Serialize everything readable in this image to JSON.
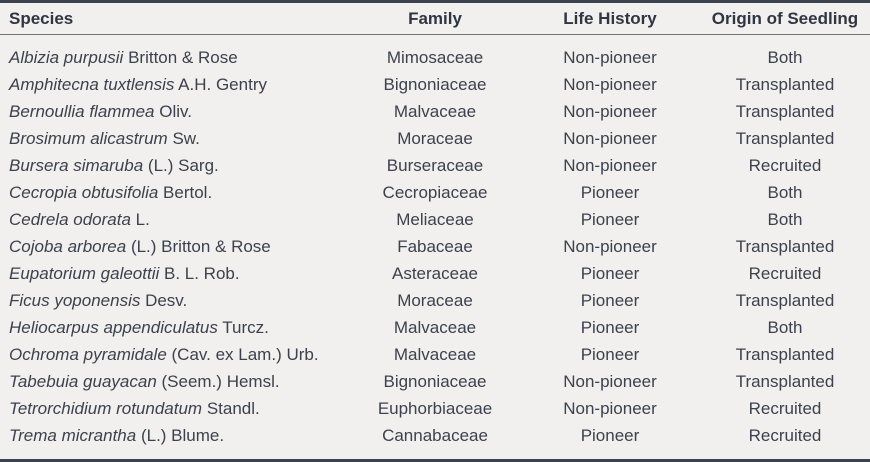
{
  "table": {
    "columns": [
      "Species",
      "Family",
      "Life History",
      "Origin of Seedling"
    ],
    "rows": [
      {
        "species": "Albizia purpusii",
        "authority": "Britton & Rose",
        "family": "Mimosaceae",
        "life_history": "Non-pioneer",
        "origin": "Both"
      },
      {
        "species": "Amphitecna tuxtlensis",
        "authority": "A.H. Gentry",
        "family": "Bignoniaceae",
        "life_history": "Non-pioneer",
        "origin": "Transplanted"
      },
      {
        "species": "Bernoullia flammea",
        "authority": "Oliv.",
        "family": "Malvaceae",
        "life_history": "Non-pioneer",
        "origin": "Transplanted"
      },
      {
        "species": "Brosimum alicastrum",
        "authority": "Sw.",
        "family": "Moraceae",
        "life_history": "Non-pioneer",
        "origin": "Transplanted"
      },
      {
        "species": "Bursera simaruba",
        "authority": "(L.) Sarg.",
        "family": "Burseraceae",
        "life_history": "Non-pioneer",
        "origin": "Recruited"
      },
      {
        "species": "Cecropia obtusifolia",
        "authority": "Bertol.",
        "family": "Cecropiaceae",
        "life_history": "Pioneer",
        "origin": "Both"
      },
      {
        "species": "Cedrela odorata",
        "authority": "L.",
        "family": "Meliaceae",
        "life_history": "Pioneer",
        "origin": "Both"
      },
      {
        "species": "Cojoba arborea",
        "authority": "(L.) Britton & Rose",
        "family": "Fabaceae",
        "life_history": "Non-pioneer",
        "origin": "Transplanted"
      },
      {
        "species": "Eupatorium galeottii",
        "authority": "B. L. Rob.",
        "family": "Asteraceae",
        "life_history": "Pioneer",
        "origin": "Recruited"
      },
      {
        "species": "Ficus yoponensis",
        "authority": "Desv.",
        "family": "Moraceae",
        "life_history": "Pioneer",
        "origin": "Transplanted"
      },
      {
        "species": "Heliocarpus appendiculatus",
        "authority": "Turcz.",
        "family": "Malvaceae",
        "life_history": "Pioneer",
        "origin": "Both"
      },
      {
        "species": "Ochroma pyramidale",
        "authority": "(Cav. ex Lam.) Urb.",
        "family": "Malvaceae",
        "life_history": "Pioneer",
        "origin": "Transplanted"
      },
      {
        "species": "Tabebuia guayacan",
        "authority": "(Seem.) Hemsl.",
        "family": "Bignoniaceae",
        "life_history": "Non-pioneer",
        "origin": "Transplanted"
      },
      {
        "species": "Tetrorchidium rotundatum",
        "authority": "Standl.",
        "family": "Euphorbiaceae",
        "life_history": "Non-pioneer",
        "origin": "Recruited"
      },
      {
        "species": "Trema micrantha",
        "authority": "(L.) Blume.",
        "family": "Cannabaceae",
        "life_history": "Pioneer",
        "origin": "Recruited"
      }
    ]
  },
  "colors": {
    "background": "#f1f0ee",
    "text": "#3c414d",
    "thick_rule": "#3b4250",
    "header_rule": "#72757a"
  }
}
